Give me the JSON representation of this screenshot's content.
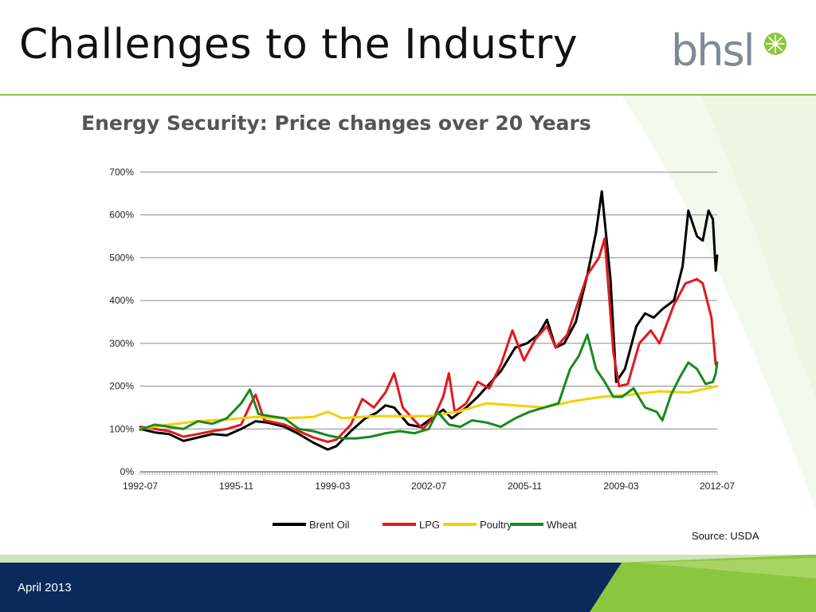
{
  "slide": {
    "title": "Challenges to the Industry",
    "date": "April 2013",
    "source": "Source: USDA"
  },
  "logo": {
    "text": "bhsl",
    "icon": "starburst-icon"
  },
  "colors": {
    "accent_green": "#8cc63f",
    "footer_navy": "#0b2a5b",
    "brent": "#000000",
    "lpg": "#e0191c",
    "poultry": "#f5d000",
    "wheat": "#178a1e"
  },
  "chart_data": {
    "type": "line",
    "title": "Energy Security: Price changes over 20 Years",
    "xlabel": "",
    "ylabel": "",
    "ylim": [
      0,
      700
    ],
    "yticks": [
      "0%",
      "100%",
      "200%",
      "300%",
      "400%",
      "500%",
      "600%",
      "700%"
    ],
    "ytick_values": [
      0,
      100,
      200,
      300,
      400,
      500,
      600,
      700
    ],
    "xticks": [
      "1992-07",
      "1995-11",
      "1999-03",
      "2002-07",
      "2005-11",
      "2009-03",
      "2012-07"
    ],
    "xtick_values": [
      1992.5,
      1995.83,
      1999.17,
      2002.5,
      2005.83,
      2009.17,
      2012.5
    ],
    "xlim": [
      1992.5,
      2012.5
    ],
    "grid": true,
    "legend_position": "bottom",
    "series": [
      {
        "name": "Brent Oil",
        "color": "#000000",
        "points": [
          [
            1992.5,
            100
          ],
          [
            1993.0,
            92
          ],
          [
            1993.5,
            88
          ],
          [
            1994.0,
            72
          ],
          [
            1994.5,
            80
          ],
          [
            1995.0,
            88
          ],
          [
            1995.5,
            85
          ],
          [
            1996.0,
            100
          ],
          [
            1996.5,
            118
          ],
          [
            1996.9,
            115
          ],
          [
            1997.5,
            105
          ],
          [
            1998.0,
            88
          ],
          [
            1998.5,
            68
          ],
          [
            1999.0,
            52
          ],
          [
            1999.3,
            60
          ],
          [
            1999.8,
            95
          ],
          [
            2000.3,
            125
          ],
          [
            2000.7,
            138
          ],
          [
            2001.0,
            155
          ],
          [
            2001.3,
            150
          ],
          [
            2001.8,
            110
          ],
          [
            2002.2,
            105
          ],
          [
            2002.6,
            125
          ],
          [
            2003.0,
            145
          ],
          [
            2003.3,
            125
          ],
          [
            2003.8,
            150
          ],
          [
            2004.2,
            175
          ],
          [
            2004.6,
            205
          ],
          [
            2005.0,
            235
          ],
          [
            2005.5,
            290
          ],
          [
            2005.9,
            300
          ],
          [
            2006.3,
            320
          ],
          [
            2006.6,
            355
          ],
          [
            2006.9,
            290
          ],
          [
            2007.2,
            300
          ],
          [
            2007.6,
            350
          ],
          [
            2008.0,
            460
          ],
          [
            2008.3,
            560
          ],
          [
            2008.5,
            655
          ],
          [
            2008.8,
            450
          ],
          [
            2009.0,
            210
          ],
          [
            2009.3,
            240
          ],
          [
            2009.7,
            340
          ],
          [
            2010.0,
            370
          ],
          [
            2010.3,
            360
          ],
          [
            2010.6,
            380
          ],
          [
            2011.0,
            400
          ],
          [
            2011.3,
            480
          ],
          [
            2011.5,
            610
          ],
          [
            2011.8,
            550
          ],
          [
            2012.0,
            540
          ],
          [
            2012.2,
            610
          ],
          [
            2012.35,
            590
          ],
          [
            2012.45,
            470
          ],
          [
            2012.5,
            505
          ]
        ]
      },
      {
        "name": "LPG",
        "color": "#e0191c",
        "points": [
          [
            1992.5,
            105
          ],
          [
            1993.0,
            100
          ],
          [
            1993.5,
            95
          ],
          [
            1994.0,
            82
          ],
          [
            1994.5,
            88
          ],
          [
            1995.0,
            95
          ],
          [
            1995.5,
            100
          ],
          [
            1996.0,
            110
          ],
          [
            1996.3,
            155
          ],
          [
            1996.5,
            180
          ],
          [
            1996.8,
            120
          ],
          [
            1997.5,
            110
          ],
          [
            1998.0,
            95
          ],
          [
            1998.5,
            80
          ],
          [
            1999.0,
            70
          ],
          [
            1999.3,
            75
          ],
          [
            1999.8,
            110
          ],
          [
            2000.2,
            170
          ],
          [
            2000.6,
            150
          ],
          [
            2001.0,
            185
          ],
          [
            2001.3,
            230
          ],
          [
            2001.6,
            150
          ],
          [
            2002.0,
            120
          ],
          [
            2002.3,
            100
          ],
          [
            2002.7,
            130
          ],
          [
            2003.0,
            175
          ],
          [
            2003.2,
            230
          ],
          [
            2003.4,
            140
          ],
          [
            2003.8,
            160
          ],
          [
            2004.2,
            210
          ],
          [
            2004.6,
            195
          ],
          [
            2005.0,
            250
          ],
          [
            2005.4,
            330
          ],
          [
            2005.8,
            260
          ],
          [
            2006.2,
            310
          ],
          [
            2006.6,
            340
          ],
          [
            2006.9,
            290
          ],
          [
            2007.3,
            320
          ],
          [
            2007.6,
            380
          ],
          [
            2008.0,
            460
          ],
          [
            2008.4,
            500
          ],
          [
            2008.6,
            545
          ],
          [
            2008.9,
            280
          ],
          [
            2009.1,
            200
          ],
          [
            2009.4,
            205
          ],
          [
            2009.8,
            300
          ],
          [
            2010.2,
            330
          ],
          [
            2010.5,
            300
          ],
          [
            2011.0,
            390
          ],
          [
            2011.4,
            440
          ],
          [
            2011.8,
            450
          ],
          [
            2012.0,
            440
          ],
          [
            2012.3,
            360
          ],
          [
            2012.45,
            250
          ],
          [
            2012.5,
            255
          ]
        ]
      },
      {
        "name": "Poultry",
        "color": "#f5d000",
        "points": [
          [
            1992.5,
            100
          ],
          [
            1993.5,
            110
          ],
          [
            1994.5,
            118
          ],
          [
            1995.5,
            122
          ],
          [
            1996.5,
            128
          ],
          [
            1997.5,
            125
          ],
          [
            1998.5,
            128
          ],
          [
            1999.0,
            140
          ],
          [
            1999.5,
            125
          ],
          [
            2000.5,
            130
          ],
          [
            2001.5,
            130
          ],
          [
            2002.5,
            130
          ],
          [
            2003.5,
            140
          ],
          [
            2004.5,
            160
          ],
          [
            2005.5,
            155
          ],
          [
            2006.5,
            150
          ],
          [
            2007.5,
            165
          ],
          [
            2008.5,
            175
          ],
          [
            2009.5,
            180
          ],
          [
            2010.5,
            188
          ],
          [
            2011.5,
            185
          ],
          [
            2012.5,
            200
          ]
        ]
      },
      {
        "name": "Wheat",
        "color": "#178a1e",
        "points": [
          [
            1992.5,
            98
          ],
          [
            1993.0,
            110
          ],
          [
            1993.5,
            105
          ],
          [
            1994.0,
            100
          ],
          [
            1994.5,
            118
          ],
          [
            1995.0,
            112
          ],
          [
            1995.5,
            125
          ],
          [
            1996.0,
            160
          ],
          [
            1996.3,
            192
          ],
          [
            1996.6,
            135
          ],
          [
            1997.0,
            130
          ],
          [
            1997.5,
            125
          ],
          [
            1998.0,
            100
          ],
          [
            1998.5,
            95
          ],
          [
            1999.0,
            85
          ],
          [
            1999.5,
            78
          ],
          [
            2000.0,
            78
          ],
          [
            2000.5,
            82
          ],
          [
            2001.0,
            90
          ],
          [
            2001.5,
            95
          ],
          [
            2002.0,
            90
          ],
          [
            2002.5,
            100
          ],
          [
            2002.8,
            140
          ],
          [
            2003.2,
            110
          ],
          [
            2003.6,
            105
          ],
          [
            2004.0,
            120
          ],
          [
            2004.5,
            115
          ],
          [
            2005.0,
            105
          ],
          [
            2005.5,
            125
          ],
          [
            2006.0,
            140
          ],
          [
            2006.5,
            150
          ],
          [
            2007.0,
            160
          ],
          [
            2007.4,
            240
          ],
          [
            2007.7,
            270
          ],
          [
            2008.0,
            320
          ],
          [
            2008.3,
            240
          ],
          [
            2008.6,
            210
          ],
          [
            2008.9,
            175
          ],
          [
            2009.2,
            175
          ],
          [
            2009.6,
            195
          ],
          [
            2010.0,
            150
          ],
          [
            2010.4,
            140
          ],
          [
            2010.6,
            120
          ],
          [
            2010.9,
            180
          ],
          [
            2011.2,
            220
          ],
          [
            2011.5,
            255
          ],
          [
            2011.8,
            240
          ],
          [
            2012.1,
            205
          ],
          [
            2012.35,
            210
          ],
          [
            2012.45,
            230
          ],
          [
            2012.5,
            255
          ]
        ]
      }
    ]
  }
}
